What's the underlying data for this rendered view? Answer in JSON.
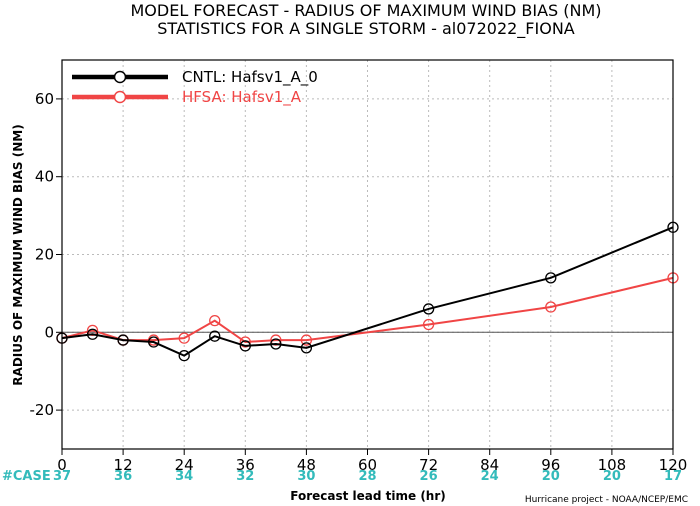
{
  "title_line1": "MODEL FORECAST - RADIUS OF MAXIMUM WIND BIAS (NM)",
  "title_line2": "STATISTICS FOR A SINGLE STORM - al072022_FIONA",
  "credit": "Hurricane project - NOAA/NCEP/EMC",
  "case_label": "#CASE",
  "case_counts": [
    "37",
    "36",
    "34",
    "32",
    "30",
    "28",
    "26",
    "24",
    "20",
    "20",
    "17"
  ],
  "chart_data": {
    "type": "line",
    "xlabel": "Forecast lead time (hr)",
    "ylabel": "RADIUS OF MAXIMUM WIND BIAS (NM)",
    "xlim": [
      0,
      120
    ],
    "ylim": [
      -30,
      70
    ],
    "xticks": [
      0,
      12,
      24,
      36,
      48,
      60,
      72,
      84,
      96,
      108,
      120
    ],
    "yticks": [
      -20,
      0,
      20,
      40,
      60
    ],
    "grid": true,
    "legend_position": "top-left",
    "series": [
      {
        "name": "CNTL: Hafsv1_A_0",
        "color": "#000000",
        "x": [
          0,
          6,
          12,
          18,
          24,
          30,
          36,
          42,
          48,
          72,
          96,
          120
        ],
        "y": [
          -1.5,
          -0.5,
          -2,
          -2.5,
          -6,
          -1,
          -3.5,
          -3,
          -4,
          6,
          14,
          27
        ]
      },
      {
        "name": "HFSA: Hafsv1_A",
        "color": "#f04545",
        "x": [
          0,
          6,
          12,
          18,
          24,
          30,
          36,
          42,
          48,
          72,
          96,
          120
        ],
        "y": [
          -1.5,
          0.5,
          -2,
          -2,
          -1.5,
          3,
          -2.5,
          -2,
          -2,
          2,
          6.5,
          14
        ]
      }
    ]
  }
}
